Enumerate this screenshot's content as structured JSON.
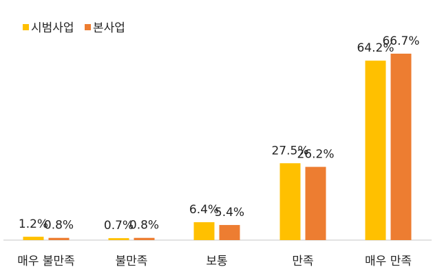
{
  "chart_data": {
    "type": "bar",
    "categories": [
      "매우 불만족",
      "불만족",
      "보통",
      "만족",
      "매우 만족"
    ],
    "series": [
      {
        "name": "시범사업",
        "values": [
          1.2,
          0.7,
          6.4,
          27.5,
          64.2
        ],
        "labels": [
          "1.2%",
          "0.7%",
          "6.4%",
          "27.5%",
          "64.2%"
        ],
        "color": "#FFC000"
      },
      {
        "name": "본사업",
        "values": [
          0.8,
          0.8,
          5.4,
          26.2,
          66.7
        ],
        "labels": [
          "0.8%",
          "0.8%",
          "5.4%",
          "26.2%",
          "66.7%"
        ],
        "color": "#ED7D31"
      }
    ],
    "title": "",
    "xlabel": "",
    "ylabel": "",
    "ylim": [
      0,
      70
    ],
    "grid": false,
    "legend": "top-left",
    "unit": "%"
  }
}
